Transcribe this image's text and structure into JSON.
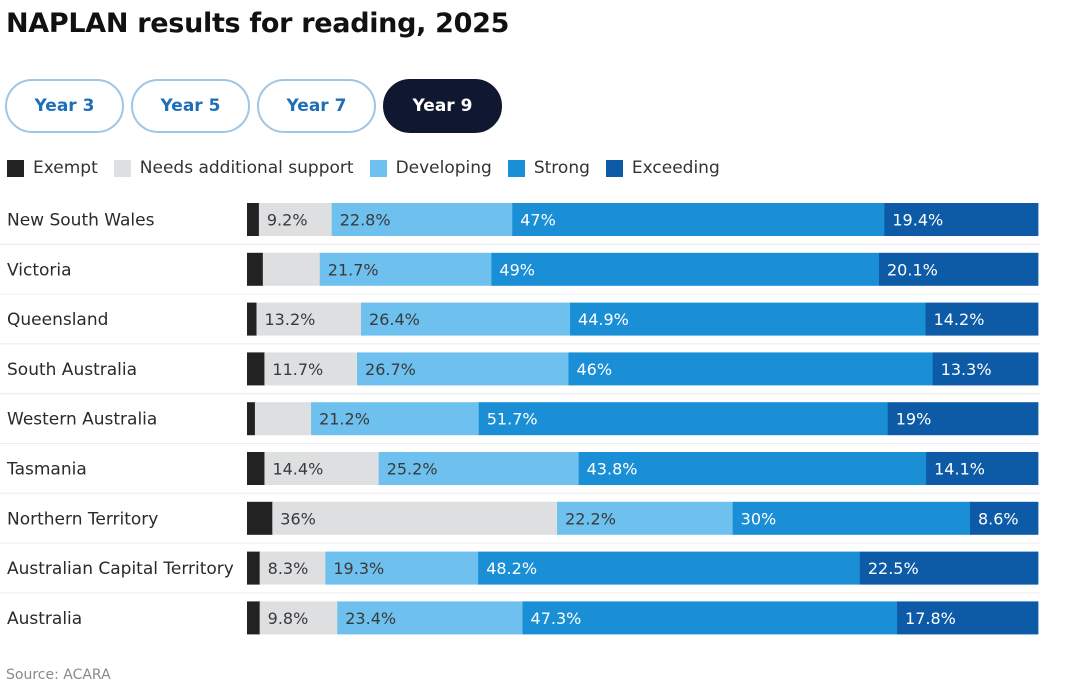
{
  "page": {
    "title": "NAPLAN results for reading, 2025",
    "source": "Source: ACARA"
  },
  "tabs": [
    {
      "label": "Year 3",
      "active": false
    },
    {
      "label": "Year 5",
      "active": false
    },
    {
      "label": "Year 7",
      "active": false
    },
    {
      "label": "Year 9",
      "active": true
    }
  ],
  "colors": {
    "Exempt": "#222222",
    "Needs additional support": "#dedfe1",
    "Developing": "#6ec1ef",
    "Strong": "#1a8fd6",
    "Exceeding": "#0d5aa7"
  },
  "chart_data": {
    "type": "bar",
    "stacked": true,
    "orientation": "horizontal",
    "title": "NAPLAN results for reading, 2025",
    "legend_position": "top-left",
    "categories": [
      "New South Wales",
      "Victoria",
      "Queensland",
      "South Australia",
      "Western Australia",
      "Tasmania",
      "Northern Territory",
      "Australian Capital Territory",
      "Australia"
    ],
    "series": [
      {
        "name": "Exempt",
        "values": [
          1.5,
          2.0,
          1.2,
          2.2,
          1.0,
          2.2,
          3.2,
          1.6,
          1.6
        ],
        "labels": [
          "",
          "",
          "",
          "",
          "",
          "",
          "",
          "",
          ""
        ]
      },
      {
        "name": "Needs additional support",
        "values": [
          9.2,
          7.2,
          13.2,
          11.7,
          7.1,
          14.4,
          36,
          8.3,
          9.8
        ],
        "labels": [
          "9.2%",
          "",
          "13.2%",
          "11.7%",
          "",
          "14.4%",
          "36%",
          "8.3%",
          "9.8%"
        ]
      },
      {
        "name": "Developing",
        "values": [
          22.8,
          21.7,
          26.4,
          26.7,
          21.2,
          25.2,
          22.2,
          19.3,
          23.4
        ],
        "labels": [
          "22.8%",
          "21.7%",
          "26.4%",
          "26.7%",
          "21.2%",
          "25.2%",
          "22.2%",
          "19.3%",
          "23.4%"
        ]
      },
      {
        "name": "Strong",
        "values": [
          47,
          49,
          44.9,
          46,
          51.7,
          43.8,
          30,
          48.2,
          47.3
        ],
        "labels": [
          "47%",
          "49%",
          "44.9%",
          "46%",
          "51.7%",
          "43.8%",
          "30%",
          "48.2%",
          "47.3%"
        ]
      },
      {
        "name": "Exceeding",
        "values": [
          19.4,
          20.1,
          14.2,
          13.3,
          19,
          14.1,
          8.6,
          22.5,
          17.8
        ],
        "labels": [
          "19.4%",
          "20.1%",
          "14.2%",
          "13.3%",
          "19%",
          "14.1%",
          "8.6%",
          "22.5%",
          "17.8%"
        ]
      }
    ],
    "xlim": [
      0,
      100
    ]
  }
}
